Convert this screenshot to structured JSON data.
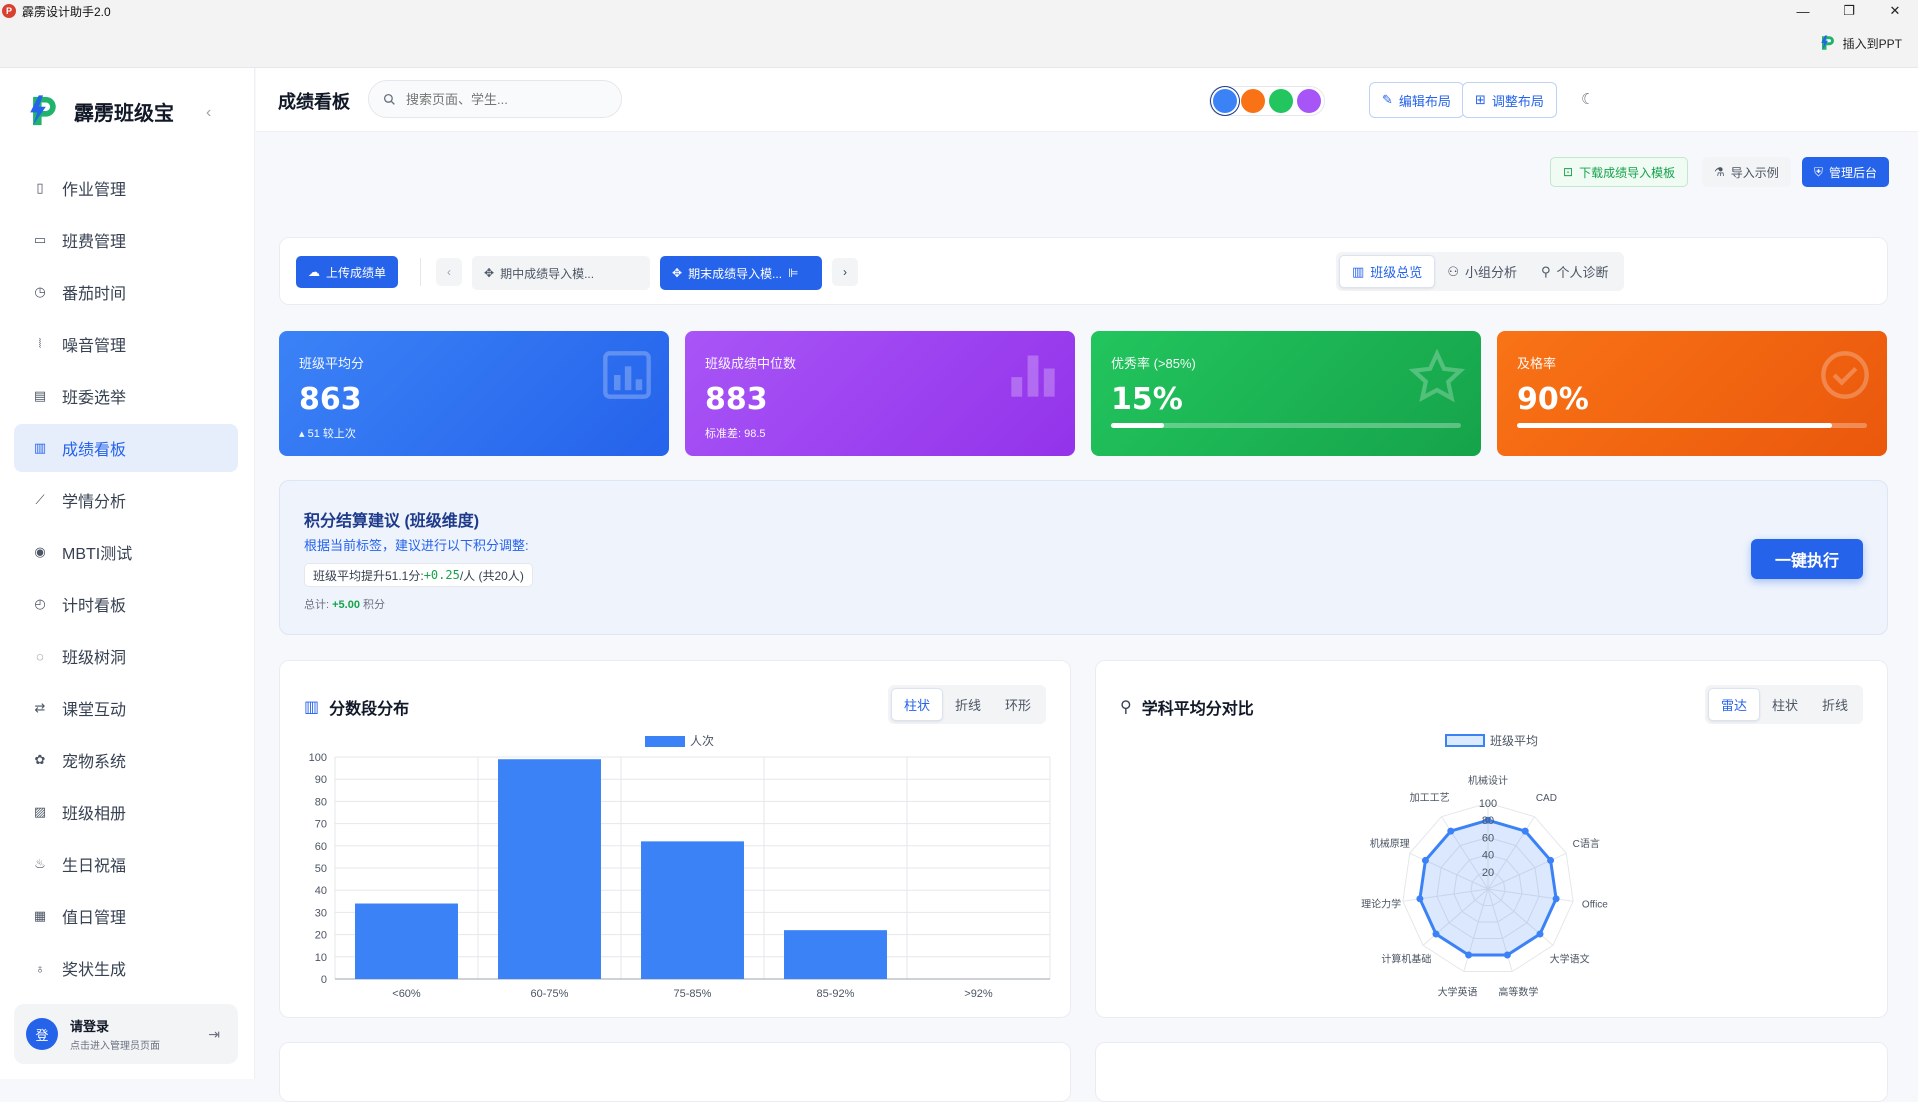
{
  "window": {
    "title": "霹雳设计助手2.0",
    "insert_ppt": "插入到PPT"
  },
  "sidebar": {
    "brand": "霹雳班级宝",
    "items": [
      {
        "label": "作业管理",
        "icon": "book-icon"
      },
      {
        "label": "班费管理",
        "icon": "wallet-icon"
      },
      {
        "label": "番茄时间",
        "icon": "timer-icon"
      },
      {
        "label": "噪音管理",
        "icon": "sound-wave-icon"
      },
      {
        "label": "班委选举",
        "icon": "ballot-icon"
      },
      {
        "label": "成绩看板",
        "icon": "bar-chart-icon",
        "active": true
      },
      {
        "label": "学情分析",
        "icon": "line-chart-icon"
      },
      {
        "label": "MBTI测试",
        "icon": "brain-icon"
      },
      {
        "label": "计时看板",
        "icon": "stopwatch-icon"
      },
      {
        "label": "班级树洞",
        "icon": "chat-icon"
      },
      {
        "label": "课堂互动",
        "icon": "interaction-icon"
      },
      {
        "label": "宠物系统",
        "icon": "paw-icon"
      },
      {
        "label": "班级相册",
        "icon": "image-icon"
      },
      {
        "label": "生日祝福",
        "icon": "cake-icon"
      },
      {
        "label": "值日管理",
        "icon": "calendar-icon"
      },
      {
        "label": "奖状生成",
        "icon": "award-icon"
      }
    ],
    "user": {
      "avatar": "登",
      "name": "请登录",
      "sub": "点击进入管理员页面"
    }
  },
  "header": {
    "title": "成绩看板",
    "search_placeholder": "搜索页面、学生...",
    "theme_colors": [
      "#3b82f6",
      "#f97316",
      "#22c55e",
      "#a855f7"
    ],
    "edit_layout": "编辑布局",
    "adjust_layout": "调整布局"
  },
  "toolbar": {
    "download_template": "下载成绩导入模板",
    "import_example": "导入示例",
    "admin": "管理后台"
  },
  "tabs_bar": {
    "upload": "上传成绩单",
    "tabs": [
      "期中成绩导入模...",
      "期末成绩导入模..."
    ],
    "views": [
      "班级总览",
      "小组分析",
      "个人诊断"
    ]
  },
  "cards": [
    {
      "label": "班级平均分",
      "value": "863",
      "sub": "51 较上次",
      "color_from": "#3b82f6",
      "color_to": "#2563eb"
    },
    {
      "label": "班级成绩中位数",
      "value": "883",
      "sub": "标准差: 98.5",
      "color_from": "#a855f7",
      "color_to": "#9333ea"
    },
    {
      "label": "优秀率 (>85%)",
      "value": "15%",
      "progress": 0.15,
      "color_from": "#22c55e",
      "color_to": "#16a34a"
    },
    {
      "label": "及格率",
      "value": "90%",
      "progress": 0.9,
      "color_from": "#f97316",
      "color_to": "#ea580c"
    }
  ],
  "advice": {
    "title": "积分结算建议 (班级维度)",
    "desc": "根据当前标签，建议进行以下积分调整:",
    "chip_prefix": "班级平均提升51.1分: ",
    "chip_value": "+0.25",
    "chip_suffix": "/人 (共20人)",
    "total_prefix": "总计: ",
    "total_value": "+5.00",
    "total_suffix": " 积分",
    "exec": "一键执行"
  },
  "score_chart": {
    "title": "分数段分布",
    "modes": [
      "柱状",
      "折线",
      "环形"
    ]
  },
  "subject_chart": {
    "title": "学科平均分对比",
    "modes": [
      "雷达",
      "柱状",
      "折线"
    ]
  },
  "chart_data": [
    {
      "type": "bar",
      "title": "分数段分布",
      "categories": [
        "<60%",
        "60-75%",
        "75-85%",
        "85-92%",
        ">92%"
      ],
      "series": [
        {
          "name": "人次",
          "values": [
            34,
            99,
            62,
            22,
            0
          ]
        }
      ],
      "ylim": [
        0,
        100
      ],
      "yticks": [
        0,
        10,
        20,
        30,
        40,
        50,
        60,
        70,
        80,
        90,
        100
      ],
      "grid": true,
      "legend": "top"
    },
    {
      "type": "radar",
      "title": "学科平均分对比",
      "categories": [
        "机械设计",
        "CAD",
        "C语言",
        "Office",
        "大学语文",
        "高等数学",
        "大学英语",
        "计算机基础",
        "理论力学",
        "机械原理",
        "加工工艺"
      ],
      "series": [
        {
          "name": "班级平均",
          "values": [
            80,
            80,
            80,
            80,
            80,
            80,
            80,
            80,
            80,
            80,
            80
          ]
        }
      ],
      "rlim": [
        0,
        100
      ],
      "rticks": [
        20,
        40,
        60,
        80,
        100
      ],
      "legend": "top"
    }
  ]
}
